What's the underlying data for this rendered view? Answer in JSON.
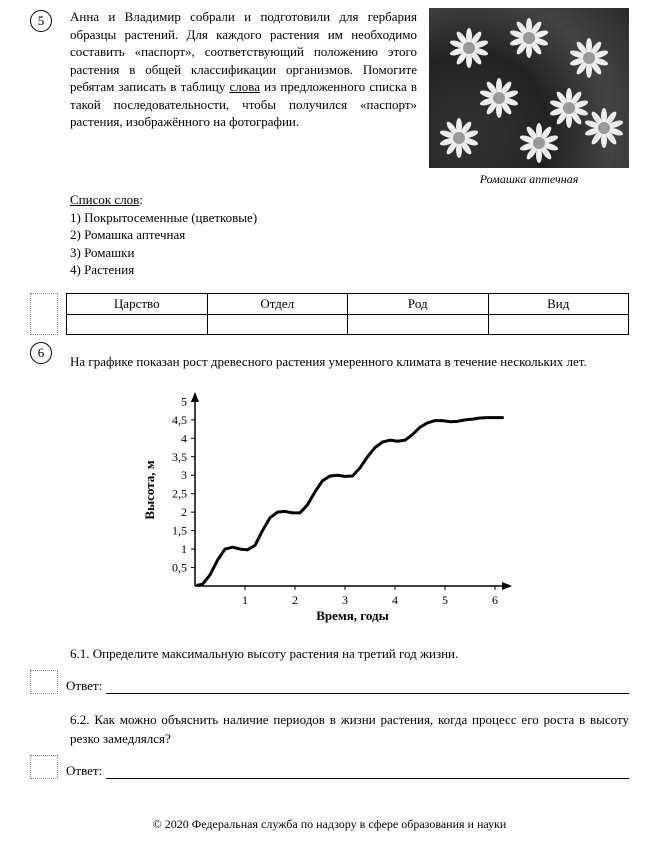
{
  "q5": {
    "number": "5",
    "paragraph": "Анна и Владимир собрали и подготовили для гербария образцы растений. Для каждого растения им необходимо составить «паспорт», соответствующий положению этого растения в общей классификации организмов. Помогите ребятам записать в таблицу ",
    "underlined": "слова",
    "paragraph_tail": " из предложенного списка в такой последовательности, чтобы получился «паспорт» растения, изображённого на фотографии.",
    "wordlist_title": "Список слов",
    "items": [
      "1) Покрытосеменные (цветковые)",
      "2) Ромашка аптечная",
      "3) Ромашки",
      "4) Растения"
    ],
    "caption": "Ромашка аптечная",
    "table_headers": [
      "Царство",
      "Отдел",
      "Род",
      "Вид"
    ]
  },
  "q6": {
    "number": "6",
    "intro": "На графике показан рост древесного растения умеренного климата в течение нескольких лет.",
    "chart": {
      "ylabel": "Высота, м",
      "xlabel": "Время, годы",
      "xlim": [
        0,
        6.3
      ],
      "ylim": [
        0,
        5.2
      ],
      "xticks": [
        1,
        2,
        3,
        4,
        5,
        6
      ],
      "yticks": [
        0.5,
        1,
        1.5,
        2,
        2.5,
        3,
        3.5,
        4,
        4.5,
        5
      ],
      "line_color": "#000000",
      "line_width": 3,
      "axis_color": "#000000",
      "tick_fontsize": 12,
      "label_fontsize": 13,
      "points": [
        [
          0.05,
          0.02
        ],
        [
          0.15,
          0.05
        ],
        [
          0.3,
          0.3
        ],
        [
          0.45,
          0.7
        ],
        [
          0.6,
          1.0
        ],
        [
          0.75,
          1.05
        ],
        [
          0.9,
          1.0
        ],
        [
          1.05,
          0.98
        ],
        [
          1.2,
          1.1
        ],
        [
          1.35,
          1.5
        ],
        [
          1.5,
          1.85
        ],
        [
          1.65,
          2.0
        ],
        [
          1.8,
          2.02
        ],
        [
          1.95,
          1.98
        ],
        [
          2.1,
          1.98
        ],
        [
          2.25,
          2.2
        ],
        [
          2.4,
          2.55
        ],
        [
          2.55,
          2.85
        ],
        [
          2.7,
          2.98
        ],
        [
          2.85,
          3.0
        ],
        [
          3.0,
          2.97
        ],
        [
          3.15,
          2.98
        ],
        [
          3.3,
          3.2
        ],
        [
          3.45,
          3.5
        ],
        [
          3.6,
          3.75
        ],
        [
          3.75,
          3.9
        ],
        [
          3.9,
          3.95
        ],
        [
          4.05,
          3.92
        ],
        [
          4.2,
          3.95
        ],
        [
          4.35,
          4.1
        ],
        [
          4.5,
          4.3
        ],
        [
          4.65,
          4.42
        ],
        [
          4.8,
          4.48
        ],
        [
          4.95,
          4.48
        ],
        [
          5.1,
          4.45
        ],
        [
          5.25,
          4.46
        ],
        [
          5.4,
          4.5
        ],
        [
          5.55,
          4.52
        ],
        [
          5.7,
          4.55
        ],
        [
          5.85,
          4.56
        ],
        [
          6.0,
          4.56
        ],
        [
          6.15,
          4.56
        ]
      ]
    },
    "sub1": "6.1. Определите максимальную высоту растения на третий год жизни.",
    "sub2": "6.2. Как можно объяснить наличие периодов в жизни растения, когда процесс его роста в высоту резко замедлялся?",
    "answer_label": "Ответ:"
  },
  "footer": "© 2020 Федеральная служба по надзору в сфере образования и науки"
}
